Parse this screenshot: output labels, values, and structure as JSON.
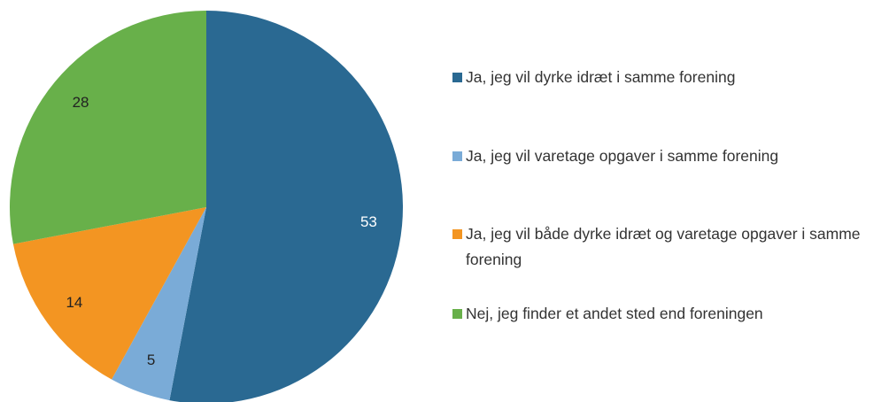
{
  "chart_data": {
    "type": "pie",
    "categories": [
      "Ja, jeg vil dyrke idræt i samme forening",
      "Ja, jeg vil varetage opgaver i samme forening",
      "Ja, jeg vil både dyrke idræt og varetage opgaver i samme forening",
      "Nej, jeg finder et andet sted end foreningen"
    ],
    "values": [
      53,
      5,
      14,
      28
    ],
    "colors": [
      "#2a6992",
      "#7aabd7",
      "#f39522",
      "#68b04a"
    ],
    "legend": "right"
  }
}
